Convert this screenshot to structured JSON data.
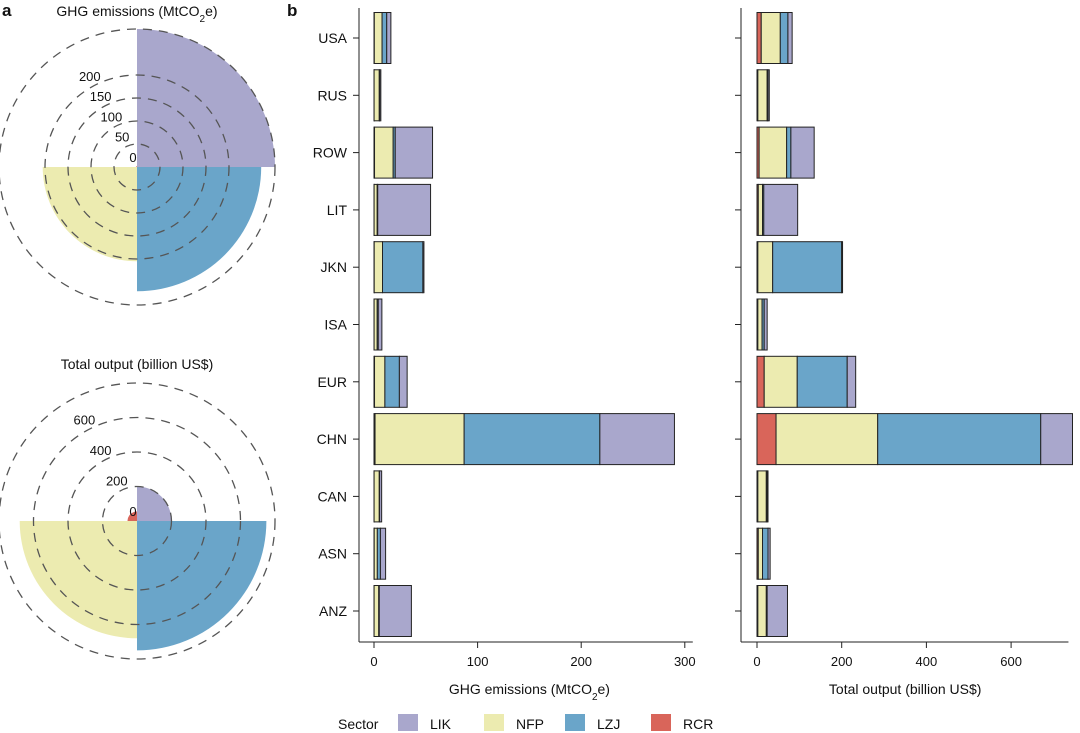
{
  "figure": {
    "panel_a_label": "a",
    "panel_b_label": "b",
    "legend_title": "Sector",
    "sectors": [
      "LIK",
      "NFP",
      "LZJ",
      "RCR"
    ],
    "colors": {
      "LIK": "#a9a7cc",
      "NFP": "#ecebb0",
      "LZJ": "#6aa5c9",
      "RCR": "#d9655a"
    }
  },
  "chart_data": [
    {
      "type": "pie",
      "subtype": "polar-area",
      "title": "GHG emissions (MtCO2e)",
      "radial_ticks": [
        0,
        50,
        100,
        150,
        200
      ],
      "rmax": 300,
      "grid": true,
      "slices": [
        {
          "sector": "LIK",
          "value": 300
        },
        {
          "sector": "LZJ",
          "value": 270
        },
        {
          "sector": "NFP",
          "value": 205
        },
        {
          "sector": "RCR",
          "value": 2
        }
      ]
    },
    {
      "type": "pie",
      "subtype": "polar-area",
      "title": "Total output (billion US$)",
      "radial_ticks": [
        0,
        200,
        400,
        600
      ],
      "rmax": 800,
      "grid": true,
      "slices": [
        {
          "sector": "LIK",
          "value": 200
        },
        {
          "sector": "LZJ",
          "value": 750
        },
        {
          "sector": "NFP",
          "value": 680
        },
        {
          "sector": "RCR",
          "value": 55
        }
      ]
    },
    {
      "type": "bar",
      "orientation": "horizontal",
      "stacked": true,
      "categories": [
        "USA",
        "RUS",
        "ROW",
        "LIT",
        "JKN",
        "ISA",
        "EUR",
        "CHN",
        "CAN",
        "ASN",
        "ANZ"
      ],
      "xlabel": "GHG emissions (MtCO2e)",
      "xlim": [
        0,
        300
      ],
      "xticks": [
        0,
        100,
        200,
        300
      ],
      "series": [
        {
          "name": "RCR",
          "values": [
            0.3,
            0.1,
            0.5,
            0.1,
            0.2,
            0.1,
            0.5,
            1.0,
            0.1,
            0.2,
            0.1
          ]
        },
        {
          "name": "NFP",
          "values": [
            7.5,
            5.0,
            18.0,
            3.0,
            8.0,
            3.0,
            10.0,
            86.0,
            5.0,
            3.0,
            4.5
          ]
        },
        {
          "name": "LZJ",
          "values": [
            4.5,
            0.5,
            2.0,
            0.5,
            39.0,
            1.0,
            14.0,
            131.0,
            0.3,
            3.0,
            0.5
          ]
        },
        {
          "name": "LIK",
          "values": [
            4.0,
            1.0,
            36.0,
            51.0,
            1.0,
            3.5,
            7.5,
            72.0,
            2.0,
            5.0,
            31.0
          ]
        }
      ]
    },
    {
      "type": "bar",
      "orientation": "horizontal",
      "stacked": true,
      "categories": [
        "USA",
        "RUS",
        "ROW",
        "LIT",
        "JKN",
        "ISA",
        "EUR",
        "CHN",
        "CAN",
        "ASN",
        "ANZ"
      ],
      "xlabel": "Total output (billion US$)",
      "xlim": [
        0,
        700
      ],
      "xticks": [
        0,
        200,
        400,
        600
      ],
      "series": [
        {
          "name": "RCR",
          "values": [
            10,
            2,
            5,
            3,
            2,
            2,
            17,
            45,
            2,
            3,
            2
          ]
        },
        {
          "name": "NFP",
          "values": [
            45,
            22,
            65,
            10,
            35,
            10,
            78,
            240,
            20,
            10,
            20
          ]
        },
        {
          "name": "LZJ",
          "values": [
            18,
            2,
            10,
            3,
            163,
            5,
            118,
            385,
            2,
            13,
            2
          ]
        },
        {
          "name": "LIK",
          "values": [
            10,
            3,
            55,
            80,
            2,
            7,
            20,
            75,
            2,
            5,
            48
          ]
        }
      ]
    }
  ]
}
